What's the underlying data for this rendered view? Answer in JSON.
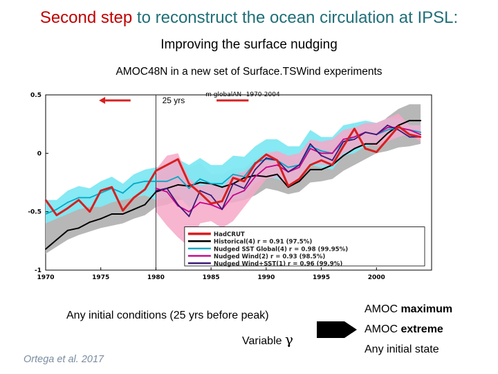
{
  "slide": {
    "title_part1": "Second step",
    "title_part2": " to reconstruct the ocean circulation at IPSL:",
    "subtitle": "Improving the surface nudging",
    "chart_caption": "AMOC48N in a new set of Surface.TSWind experiments",
    "initial_conditions_text": "(25 yrs before peak)",
    "initial_conditions_prefix": "Any initial conditions",
    "variable_label": "Variable",
    "gamma_symbol": "γ",
    "result_1_prefix": "AMOC",
    "result_1_bold": "maximum",
    "result_2_prefix": "AMOC",
    "result_2_bold": "extreme",
    "result_3": "Any initial state",
    "citation": "Ortega et al. 2017",
    "colors": {
      "title_red": "#c00000",
      "title_teal": "#1f6f78",
      "arrow": "#000000"
    }
  },
  "chart_data": {
    "type": "line",
    "header_text": "m globalAN--1970-2004",
    "span_label": "25 yrs",
    "marker_year": 1980,
    "xlim": [
      1970,
      2005
    ],
    "ylim": [
      -1,
      0.5
    ],
    "xticks": [
      1970,
      1975,
      1980,
      1985,
      1990,
      1995,
      2000
    ],
    "yticks": [
      -1,
      -0.5,
      0,
      0.5
    ],
    "x": [
      1970,
      1971,
      1972,
      1973,
      1974,
      1975,
      1976,
      1977,
      1978,
      1979,
      1980,
      1981,
      1982,
      1983,
      1984,
      1985,
      1986,
      1987,
      1988,
      1989,
      1990,
      1991,
      1992,
      1993,
      1994,
      1995,
      1996,
      1997,
      1998,
      1999,
      2000,
      2001,
      2002,
      2003,
      2004
    ],
    "bands": [
      {
        "name": "grey spread",
        "color": "#b3b3b3",
        "lower": [
          -0.86,
          -0.8,
          -0.74,
          -0.7,
          -0.67,
          -0.64,
          -0.62,
          -0.6,
          -0.56,
          -0.53,
          -0.46,
          -0.44,
          -0.4,
          -0.4,
          -0.38,
          -0.4,
          -0.43,
          -0.42,
          -0.4,
          -0.36,
          -0.3,
          -0.32,
          -0.35,
          -0.33,
          -0.25,
          -0.24,
          -0.22,
          -0.15,
          -0.1,
          -0.05,
          0.0,
          0.02,
          0.05,
          0.06,
          0.08
        ],
        "upper": [
          -0.42,
          -0.5,
          -0.44,
          -0.36,
          -0.38,
          -0.32,
          -0.3,
          -0.34,
          -0.24,
          -0.22,
          -0.21,
          -0.15,
          -0.12,
          -0.12,
          -0.08,
          -0.18,
          -0.18,
          -0.13,
          -0.13,
          -0.05,
          0.0,
          -0.02,
          -0.05,
          -0.05,
          0.08,
          0.04,
          0.06,
          0.13,
          0.14,
          0.2,
          0.22,
          0.31,
          0.38,
          0.42,
          0.42
        ]
      },
      {
        "name": "cyan spread",
        "color": "#7fe8f2",
        "lower": [
          -0.6,
          -0.56,
          -0.52,
          -0.48,
          -0.46,
          -0.46,
          -0.42,
          -0.4,
          -0.38,
          -0.36,
          -0.4,
          -0.38,
          -0.36,
          -0.46,
          -0.4,
          -0.42,
          -0.42,
          -0.4,
          -0.38,
          -0.26,
          -0.2,
          -0.22,
          -0.26,
          -0.22,
          -0.1,
          -0.12,
          -0.14,
          -0.02,
          0.0,
          0.06,
          0.08,
          0.12,
          0.14,
          0.18,
          0.14
        ],
        "upper": [
          -0.4,
          -0.4,
          -0.32,
          -0.28,
          -0.3,
          -0.24,
          -0.2,
          -0.26,
          -0.18,
          -0.14,
          -0.12,
          -0.1,
          -0.05,
          -0.1,
          -0.04,
          -0.1,
          -0.1,
          -0.02,
          -0.03,
          0.06,
          0.12,
          0.12,
          0.06,
          0.06,
          0.2,
          0.14,
          0.14,
          0.24,
          0.26,
          0.28,
          0.26,
          0.3,
          0.3,
          0.24,
          0.24
        ]
      },
      {
        "name": "pink spread",
        "color": "#f6a8c8",
        "lower": null,
        "upper": null,
        "x_sub": [
          1980,
          1981,
          1982,
          1983,
          1984,
          1985,
          1986,
          1987,
          1988,
          1989,
          1990,
          1991,
          1992,
          1993,
          1994,
          1995,
          1996,
          1997,
          1998,
          1999,
          2000,
          2001,
          2002,
          2003,
          2004
        ],
        "lower_sub": [
          -0.5,
          -0.62,
          -0.72,
          -0.8,
          -0.6,
          -0.58,
          -0.64,
          -0.58,
          -0.46,
          -0.34,
          -0.22,
          -0.2,
          -0.3,
          -0.24,
          -0.08,
          -0.1,
          -0.1,
          0.0,
          0.04,
          0.08,
          0.06,
          0.1,
          0.14,
          0.16,
          0.1
        ],
        "upper_sub": [
          -0.14,
          -0.02,
          0.0,
          -0.22,
          -0.28,
          -0.26,
          -0.3,
          -0.18,
          -0.16,
          -0.08,
          0.0,
          0.02,
          -0.02,
          0.0,
          0.12,
          0.1,
          0.12,
          0.2,
          0.22,
          0.26,
          0.26,
          0.3,
          0.34,
          0.24,
          0.24
        ]
      }
    ],
    "series": [
      {
        "name": "HadCRUT",
        "legend": "HadCRUT",
        "color": "#d62020",
        "width": 3,
        "values": [
          -0.4,
          -0.53,
          -0.47,
          -0.4,
          -0.5,
          -0.32,
          -0.29,
          -0.49,
          -0.38,
          -0.31,
          -0.15,
          -0.1,
          -0.05,
          -0.26,
          -0.34,
          -0.43,
          -0.41,
          -0.21,
          -0.24,
          -0.09,
          -0.01,
          -0.06,
          -0.28,
          -0.22,
          -0.1,
          -0.06,
          -0.1,
          0.06,
          0.21,
          0.04,
          0.01,
          0.12,
          0.23,
          0.16,
          0.14
        ]
      },
      {
        "name": "Historical",
        "legend": "Historical(4) r = 0.91 (97.5%)",
        "color": "#000000",
        "width": 2,
        "values": [
          -0.82,
          -0.74,
          -0.66,
          -0.64,
          -0.59,
          -0.56,
          -0.52,
          -0.52,
          -0.48,
          -0.44,
          -0.33,
          -0.3,
          -0.27,
          -0.28,
          -0.25,
          -0.26,
          -0.29,
          -0.26,
          -0.21,
          -0.19,
          -0.2,
          -0.18,
          -0.29,
          -0.24,
          -0.14,
          -0.14,
          -0.1,
          -0.02,
          0.04,
          0.08,
          0.08,
          0.17,
          0.24,
          0.28,
          0.28
        ]
      },
      {
        "name": "Nudged SST Global",
        "legend": "Nudged SST Global(4) r = 0.98 (99.95%)",
        "color": "#00a8c8",
        "width": 1.8,
        "values": [
          -0.52,
          -0.48,
          -0.42,
          -0.38,
          -0.38,
          -0.34,
          -0.3,
          -0.34,
          -0.26,
          -0.24,
          -0.24,
          -0.24,
          -0.2,
          -0.3,
          -0.22,
          -0.26,
          -0.26,
          -0.18,
          -0.2,
          -0.08,
          -0.05,
          -0.06,
          -0.12,
          -0.1,
          0.06,
          0.02,
          0.0,
          0.1,
          0.14,
          0.18,
          0.16,
          0.2,
          0.22,
          0.2,
          0.18
        ]
      },
      {
        "name": "Nudged Wind",
        "legend": "Nudged Wind(2) r = 0.93 (98.5%)",
        "color": "#c8008c",
        "width": 1.8,
        "values": [
          null,
          null,
          null,
          null,
          null,
          null,
          null,
          null,
          null,
          null,
          -0.3,
          -0.33,
          -0.45,
          -0.5,
          -0.42,
          -0.44,
          -0.48,
          -0.36,
          -0.32,
          -0.2,
          -0.12,
          -0.1,
          -0.16,
          -0.12,
          0.04,
          0.0,
          0.0,
          0.12,
          0.14,
          0.18,
          0.16,
          0.22,
          0.22,
          0.2,
          0.16
        ]
      },
      {
        "name": "Nudged Wind+SST",
        "legend": "Nudged Wind+SST(1) r = 0.96 (99.9%)",
        "color": "#3a1a78",
        "width": 1.8,
        "values": [
          null,
          null,
          null,
          null,
          null,
          null,
          null,
          null,
          null,
          null,
          -0.32,
          -0.3,
          -0.44,
          -0.54,
          -0.32,
          -0.36,
          -0.48,
          -0.26,
          -0.3,
          -0.14,
          -0.04,
          -0.06,
          -0.16,
          -0.1,
          0.08,
          -0.02,
          -0.06,
          0.1,
          0.12,
          0.18,
          0.16,
          0.24,
          0.2,
          0.14,
          0.14
        ]
      }
    ]
  }
}
